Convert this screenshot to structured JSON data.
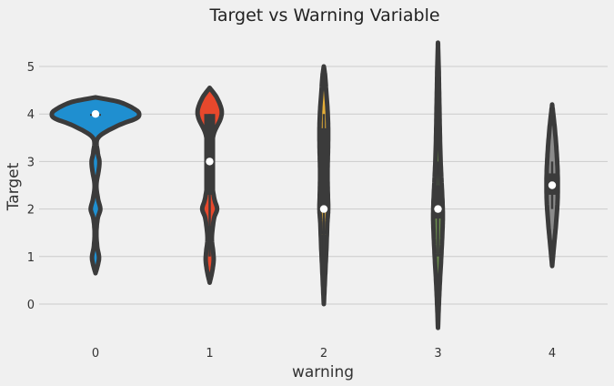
{
  "chart_data": {
    "type": "violin",
    "title": "Target vs Warning Variable",
    "xlabel": "warning",
    "ylabel": "Target",
    "ylim": [
      -0.75,
      5.6
    ],
    "yticks": [
      0,
      1,
      2,
      3,
      4,
      5
    ],
    "grid": true,
    "categories": [
      "0",
      "1",
      "2",
      "3",
      "4"
    ],
    "series": [
      {
        "category": "0",
        "color": "#1f8fd0",
        "median": 4,
        "q1": 4,
        "q3": 4,
        "whisker_low": 4,
        "whisker_high": 4,
        "range": [
          0.65,
          4.35
        ],
        "profile": [
          [
            0.65,
            0.0
          ],
          [
            0.85,
            0.06
          ],
          [
            1.0,
            0.08
          ],
          [
            1.2,
            0.04
          ],
          [
            1.5,
            0.02
          ],
          [
            1.8,
            0.05
          ],
          [
            2.0,
            0.11
          ],
          [
            2.2,
            0.06
          ],
          [
            2.5,
            0.02
          ],
          [
            2.8,
            0.07
          ],
          [
            3.0,
            0.09
          ],
          [
            3.2,
            0.05
          ],
          [
            3.5,
            0.06
          ],
          [
            3.75,
            0.5
          ],
          [
            3.9,
            0.92
          ],
          [
            4.0,
            1.0
          ],
          [
            4.1,
            0.9
          ],
          [
            4.25,
            0.55
          ],
          [
            4.35,
            0.0
          ]
        ]
      },
      {
        "category": "1",
        "color": "#e8482c",
        "median": 3,
        "q1": 2.3,
        "q3": 4,
        "whisker_low": 1,
        "whisker_high": 4,
        "range": [
          0.45,
          4.55
        ],
        "profile": [
          [
            0.45,
            0.0
          ],
          [
            0.65,
            0.05
          ],
          [
            0.9,
            0.09
          ],
          [
            1.1,
            0.08
          ],
          [
            1.4,
            0.05
          ],
          [
            1.8,
            0.1
          ],
          [
            2.0,
            0.17
          ],
          [
            2.2,
            0.11
          ],
          [
            2.5,
            0.06
          ],
          [
            2.8,
            0.05
          ],
          [
            3.0,
            0.07
          ],
          [
            3.3,
            0.05
          ],
          [
            3.6,
            0.1
          ],
          [
            3.9,
            0.25
          ],
          [
            4.1,
            0.27
          ],
          [
            4.35,
            0.16
          ],
          [
            4.55,
            0.0
          ]
        ]
      },
      {
        "category": "2",
        "color": "#e5ae38",
        "median": 2,
        "q1": 1.95,
        "q3": 3.7,
        "whisker_low": 1,
        "whisker_high": 4,
        "range": [
          0.0,
          5.0
        ],
        "profile": [
          [
            0.0,
            0.0
          ],
          [
            0.4,
            0.02
          ],
          [
            0.8,
            0.04
          ],
          [
            1.2,
            0.06
          ],
          [
            1.7,
            0.08
          ],
          [
            2.0,
            0.1
          ],
          [
            2.4,
            0.09
          ],
          [
            2.8,
            0.085
          ],
          [
            3.2,
            0.095
          ],
          [
            3.6,
            0.1
          ],
          [
            4.0,
            0.09
          ],
          [
            4.4,
            0.06
          ],
          [
            4.8,
            0.03
          ],
          [
            5.0,
            0.0
          ]
        ]
      },
      {
        "category": "3",
        "color": "#6d904f",
        "median": 2,
        "q1": 1.8,
        "q3": 2.5,
        "whisker_low": 1,
        "whisker_high": 3.0,
        "range": [
          -0.5,
          5.5
        ],
        "profile": [
          [
            -0.5,
            0.0
          ],
          [
            0.0,
            0.02
          ],
          [
            0.5,
            0.045
          ],
          [
            1.0,
            0.075
          ],
          [
            1.5,
            0.1
          ],
          [
            1.8,
            0.11
          ],
          [
            2.1,
            0.105
          ],
          [
            2.5,
            0.085
          ],
          [
            3.0,
            0.06
          ],
          [
            3.5,
            0.045
          ],
          [
            4.0,
            0.035
          ],
          [
            4.5,
            0.025
          ],
          [
            5.0,
            0.015
          ],
          [
            5.5,
            0.0
          ]
        ]
      },
      {
        "category": "4",
        "color": "#8b8b8b",
        "median": 2.5,
        "q1": 2.3,
        "q3": 2.75,
        "whisker_low": 2,
        "whisker_high": 3,
        "range": [
          0.8,
          4.2
        ],
        "profile": [
          [
            0.8,
            0.0
          ],
          [
            1.0,
            0.02
          ],
          [
            1.3,
            0.05
          ],
          [
            1.7,
            0.09
          ],
          [
            2.1,
            0.12
          ],
          [
            2.5,
            0.13
          ],
          [
            2.9,
            0.12
          ],
          [
            3.3,
            0.095
          ],
          [
            3.7,
            0.06
          ],
          [
            4.0,
            0.025
          ],
          [
            4.2,
            0.0
          ]
        ]
      }
    ]
  }
}
